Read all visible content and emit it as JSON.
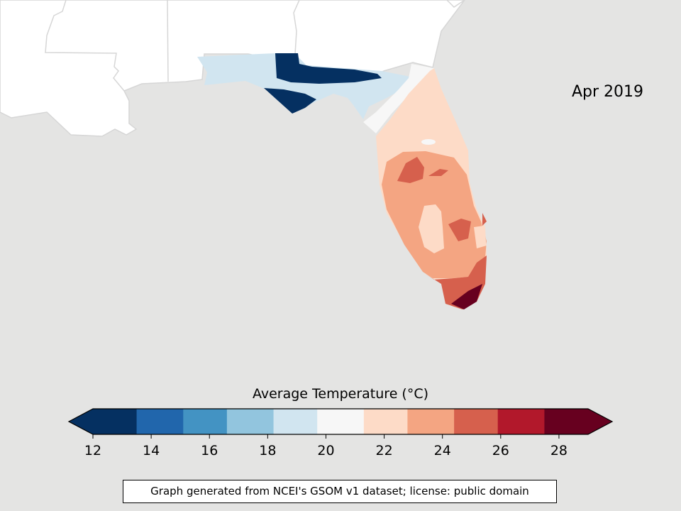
{
  "map": {
    "date_label": "Apr 2019",
    "colorbar": {
      "title": "Average Temperature (°C)",
      "ticks": [
        "12",
        "14",
        "16",
        "18",
        "20",
        "22",
        "24",
        "26",
        "28"
      ],
      "min": 12,
      "max": 29,
      "bins": [
        {
          "from": 12.0,
          "to": 13.5,
          "color": "#053061"
        },
        {
          "from": 13.5,
          "to": 15.1,
          "color": "#2166ac"
        },
        {
          "from": 15.1,
          "to": 16.6,
          "color": "#4393c3"
        },
        {
          "from": 16.6,
          "to": 18.2,
          "color": "#92c5de"
        },
        {
          "from": 18.2,
          "to": 19.7,
          "color": "#d1e5f0"
        },
        {
          "from": 19.7,
          "to": 21.3,
          "color": "#f7f7f7"
        },
        {
          "from": 21.3,
          "to": 22.8,
          "color": "#fddbc7"
        },
        {
          "from": 22.8,
          "to": 24.4,
          "color": "#f4a582"
        },
        {
          "from": 24.4,
          "to": 25.9,
          "color": "#d6604d"
        },
        {
          "from": 25.9,
          "to": 27.5,
          "color": "#b2182b"
        },
        {
          "from": 27.5,
          "to": 29.0,
          "color": "#67001f"
        }
      ],
      "extend_low_color": "#053061",
      "extend_high_color": "#67001f"
    },
    "attribution": "Graph generated from NCEI's GSOM v1 dataset; license: public domain",
    "colors": {
      "ocean": "#e4e4e3",
      "land": "#ffffff",
      "borders": "#d6d6d6"
    }
  }
}
